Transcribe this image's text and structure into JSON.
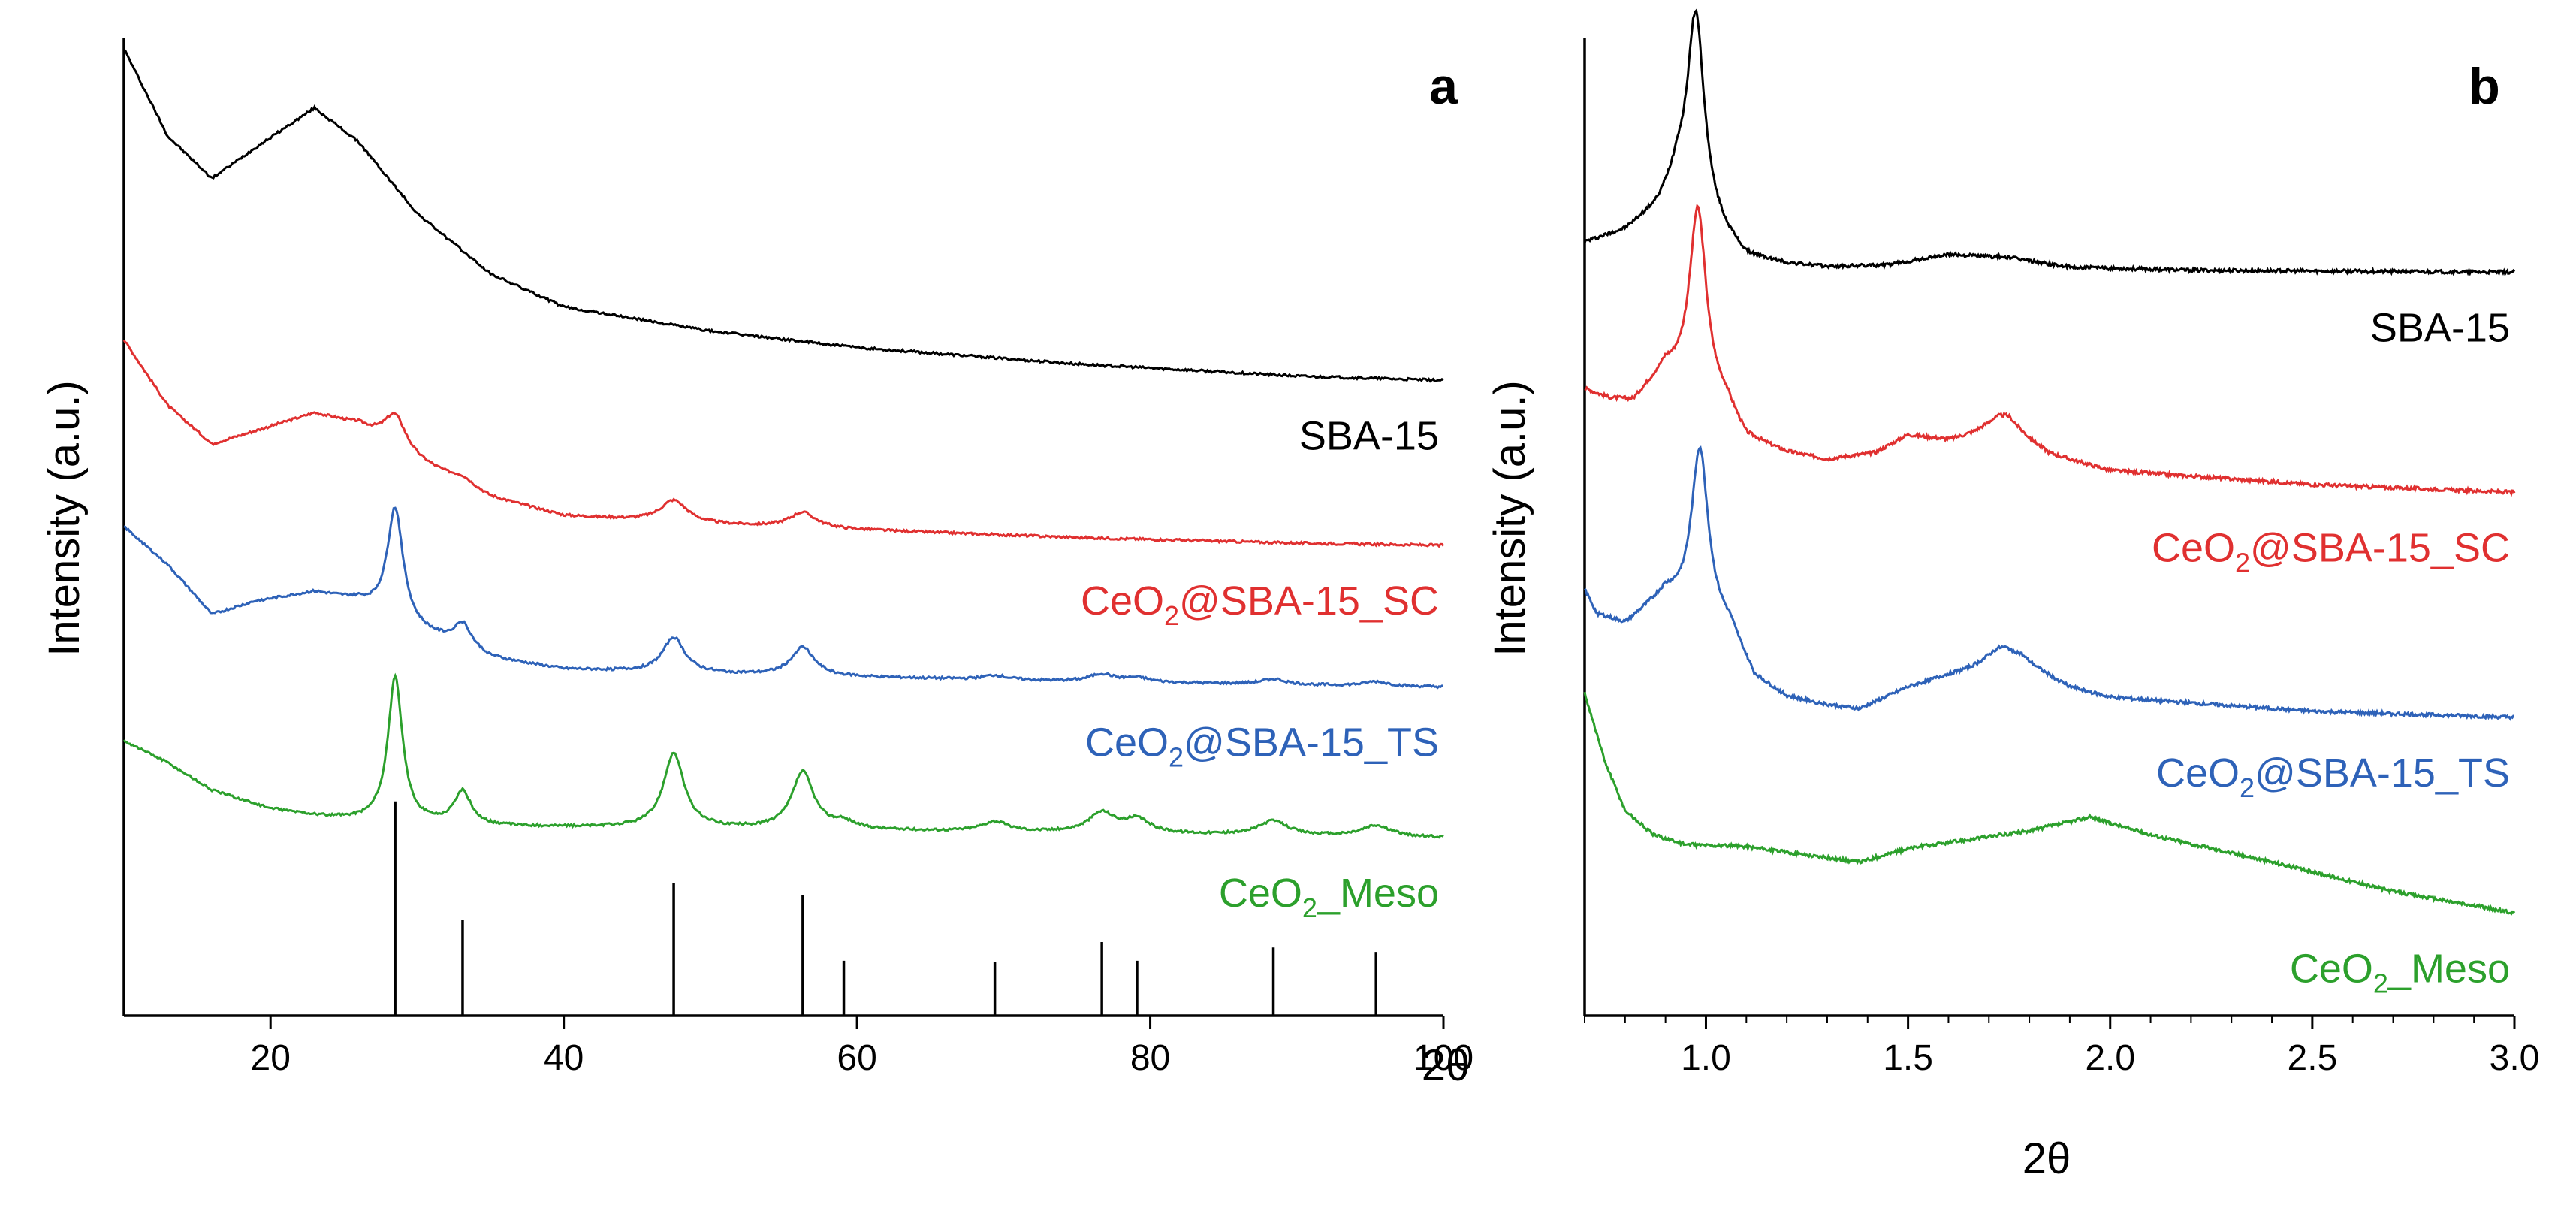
{
  "chart_data": [
    {
      "panel_label": "a",
      "type": "line",
      "title": "",
      "xlabel": "2θ",
      "ylabel": "Intensity (a.u.)",
      "xlim": [
        10,
        100
      ],
      "ylim": [
        0,
        8.9
      ],
      "x_ticks": [
        20,
        40,
        60,
        80,
        100
      ],
      "grid": false,
      "series": [
        {
          "name": "SBA-15",
          "label_base": "SBA-15",
          "label_sub": "",
          "label_tail": "",
          "color": "#000000",
          "baseline": 5.1,
          "background": [
            [
              10,
              3.7
            ],
            [
              13,
              2.9
            ],
            [
              16,
              2.52
            ],
            [
              19,
              2.8
            ],
            [
              23,
              3.16
            ],
            [
              26,
              2.85
            ],
            [
              30,
              2.2
            ],
            [
              35,
              1.65
            ],
            [
              40,
              1.35
            ],
            [
              50,
              1.13
            ],
            [
              60,
              0.98
            ],
            [
              75,
              0.83
            ],
            [
              90,
              0.72
            ],
            [
              100,
              0.68
            ]
          ],
          "peaks": []
        },
        {
          "name": "CeO2@SBA-15_SC",
          "label_base": "CeO",
          "label_sub": "2",
          "label_tail": "@SBA-15_SC",
          "color": "#e03030",
          "baseline": 4.2,
          "background": [
            [
              10,
              1.95
            ],
            [
              13,
              1.35
            ],
            [
              16,
              1.0
            ],
            [
              19,
              1.12
            ],
            [
              23,
              1.28
            ],
            [
              26,
              1.18
            ],
            [
              30,
              0.85
            ],
            [
              35,
              0.52
            ],
            [
              40,
              0.35
            ],
            [
              50,
              0.27
            ],
            [
              60,
              0.22
            ],
            [
              75,
              0.15
            ],
            [
              90,
              0.1
            ],
            [
              100,
              0.08
            ]
          ],
          "peaks": [
            [
              28.5,
              0.3,
              0.9
            ],
            [
              33.1,
              0.06,
              0.9
            ],
            [
              47.5,
              0.2,
              1.1
            ],
            [
              56.3,
              0.14,
              1.1
            ]
          ]
        },
        {
          "name": "CeO2@SBA-15_TS",
          "label_base": "CeO",
          "label_sub": "2",
          "label_tail": "@SBA-15_TS",
          "color": "#2e62b8",
          "baseline": 2.95,
          "background": [
            [
              10,
              1.5
            ],
            [
              13,
              1.15
            ],
            [
              16,
              0.7
            ],
            [
              19,
              0.82
            ],
            [
              23,
              0.9
            ],
            [
              26,
              0.82
            ],
            [
              30,
              0.55
            ],
            [
              35,
              0.3
            ],
            [
              40,
              0.2
            ],
            [
              50,
              0.16
            ],
            [
              60,
              0.13
            ],
            [
              75,
              0.09
            ],
            [
              90,
              0.06
            ],
            [
              100,
              0.04
            ]
          ],
          "peaks": [
            [
              28.5,
              1.02,
              0.65
            ],
            [
              33.1,
              0.22,
              0.75
            ],
            [
              47.5,
              0.32,
              0.9
            ],
            [
              56.3,
              0.26,
              0.95
            ],
            [
              69.4,
              0.04,
              1.0
            ],
            [
              76.7,
              0.07,
              1.0
            ],
            [
              79.1,
              0.04,
              1.0
            ],
            [
              88.4,
              0.05,
              1.0
            ],
            [
              95.4,
              0.04,
              1.0
            ]
          ]
        },
        {
          "name": "CeO2_Meso",
          "label_base": "CeO",
          "label_sub": "2",
          "label_tail": "_Meso",
          "color": "#2ca02c",
          "baseline": 1.6,
          "background": [
            [
              10,
              0.9
            ],
            [
              13,
              0.7
            ],
            [
              16,
              0.45
            ],
            [
              20,
              0.28
            ],
            [
              24,
              0.2
            ],
            [
              28,
              0.16
            ],
            [
              35,
              0.12
            ],
            [
              50,
              0.1
            ],
            [
              70,
              0.07
            ],
            [
              100,
              0.02
            ]
          ],
          "peaks": [
            [
              28.5,
              1.32,
              0.6
            ],
            [
              33.1,
              0.3,
              0.7
            ],
            [
              47.5,
              0.68,
              0.85
            ],
            [
              56.3,
              0.52,
              0.9
            ],
            [
              59.1,
              0.06,
              1.0
            ],
            [
              69.4,
              0.09,
              1.1
            ],
            [
              76.7,
              0.18,
              1.1
            ],
            [
              79.1,
              0.12,
              1.1
            ],
            [
              88.4,
              0.13,
              1.2
            ],
            [
              95.4,
              0.1,
              1.2
            ]
          ]
        }
      ],
      "reference_lines": [
        {
          "x": 28.5,
          "height": 1.95
        },
        {
          "x": 33.1,
          "height": 0.87
        },
        {
          "x": 47.5,
          "height": 1.21
        },
        {
          "x": 56.3,
          "height": 1.1
        },
        {
          "x": 59.1,
          "height": 0.5
        },
        {
          "x": 69.4,
          "height": 0.49
        },
        {
          "x": 76.7,
          "height": 0.67
        },
        {
          "x": 79.1,
          "height": 0.5
        },
        {
          "x": 88.4,
          "height": 0.62
        },
        {
          "x": 95.4,
          "height": 0.58
        }
      ]
    },
    {
      "panel_label": "b",
      "type": "line",
      "title": "",
      "xlabel": "2θ",
      "ylabel": "Intensity (a.u.)",
      "xlim": [
        0.7,
        3.0
      ],
      "ylim": [
        0,
        10
      ],
      "x_ticks": [
        1.0,
        1.5,
        2.0,
        2.5,
        3.0
      ],
      "x_tick_labels": [
        "1.0",
        "1.5",
        "2.0",
        "2.5",
        "3.0"
      ],
      "grid": false,
      "series": [
        {
          "name": "SBA-15",
          "label_base": "SBA-15",
          "label_sub": "",
          "label_tail": "",
          "color": "#000000",
          "baseline": 7.6,
          "background": [
            [
              0.7,
              0.3
            ],
            [
              0.8,
              0.42
            ],
            [
              0.88,
              0.65
            ],
            [
              0.93,
              0.95
            ],
            [
              1.05,
              0.35
            ],
            [
              1.1,
              0.15
            ],
            [
              1.2,
              0.08
            ],
            [
              1.3,
              0.05
            ],
            [
              1.45,
              0.07
            ],
            [
              1.6,
              0.18
            ],
            [
              1.75,
              0.15
            ],
            [
              1.9,
              0.05
            ],
            [
              2.2,
              0.02
            ],
            [
              3.0,
              0.0
            ]
          ],
          "peaks": [
            [
              0.975,
              1.95,
              0.025
            ]
          ]
        },
        {
          "name": "CeO2@SBA-15_SC",
          "label_base": "CeO",
          "label_sub": "2",
          "label_tail": "@SBA-15_SC",
          "color": "#e03030",
          "baseline": 5.35,
          "background": [
            [
              0.7,
              1.05
            ],
            [
              0.76,
              0.95
            ],
            [
              0.82,
              0.92
            ],
            [
              0.9,
              1.25
            ],
            [
              1.05,
              0.9
            ],
            [
              1.1,
              0.55
            ],
            [
              1.2,
              0.4
            ],
            [
              1.3,
              0.33
            ],
            [
              1.42,
              0.4
            ],
            [
              1.5,
              0.58
            ],
            [
              1.6,
              0.52
            ],
            [
              1.75,
              0.62
            ],
            [
              1.85,
              0.38
            ],
            [
              2.0,
              0.22
            ],
            [
              2.5,
              0.08
            ],
            [
              3.0,
              0.0
            ]
          ],
          "peaks": [
            [
              0.98,
              1.85,
              0.025
            ],
            [
              1.73,
              0.18,
              0.05
            ]
          ]
        },
        {
          "name": "CeO2@SBA-15_TS",
          "label_base": "CeO",
          "label_sub": "2",
          "label_tail": "@SBA-15_TS",
          "color": "#2e62b8",
          "baseline": 3.05,
          "background": [
            [
              0.7,
              1.3
            ],
            [
              0.73,
              1.05
            ],
            [
              0.8,
              0.95
            ],
            [
              0.9,
              1.25
            ],
            [
              1.06,
              0.9
            ],
            [
              1.12,
              0.4
            ],
            [
              1.2,
              0.2
            ],
            [
              1.3,
              0.12
            ],
            [
              1.38,
              0.08
            ],
            [
              1.5,
              0.3
            ],
            [
              1.6,
              0.42
            ],
            [
              1.78,
              0.55
            ],
            [
              1.9,
              0.3
            ],
            [
              2.0,
              0.2
            ],
            [
              2.5,
              0.06
            ],
            [
              3.0,
              0.0
            ]
          ],
          "peaks": [
            [
              0.985,
              1.7,
              0.025
            ],
            [
              1.73,
              0.2,
              0.05
            ]
          ]
        },
        {
          "name": "CeO2_Meso",
          "label_base": "CeO",
          "label_sub": "2",
          "label_tail": "_Meso",
          "color": "#2ca02c",
          "baseline": 1.05,
          "background": [
            [
              0.7,
              2.25
            ],
            [
              0.75,
              1.55
            ],
            [
              0.8,
              1.05
            ],
            [
              0.87,
              0.8
            ],
            [
              0.95,
              0.7
            ],
            [
              1.1,
              0.68
            ],
            [
              1.2,
              0.62
            ],
            [
              1.38,
              0.52
            ],
            [
              1.5,
              0.66
            ],
            [
              1.65,
              0.75
            ],
            [
              1.8,
              0.84
            ],
            [
              1.95,
              0.98
            ],
            [
              2.1,
              0.8
            ],
            [
              2.4,
              0.52
            ],
            [
              2.7,
              0.22
            ],
            [
              3.0,
              0.0
            ]
          ],
          "peaks": []
        }
      ]
    }
  ]
}
